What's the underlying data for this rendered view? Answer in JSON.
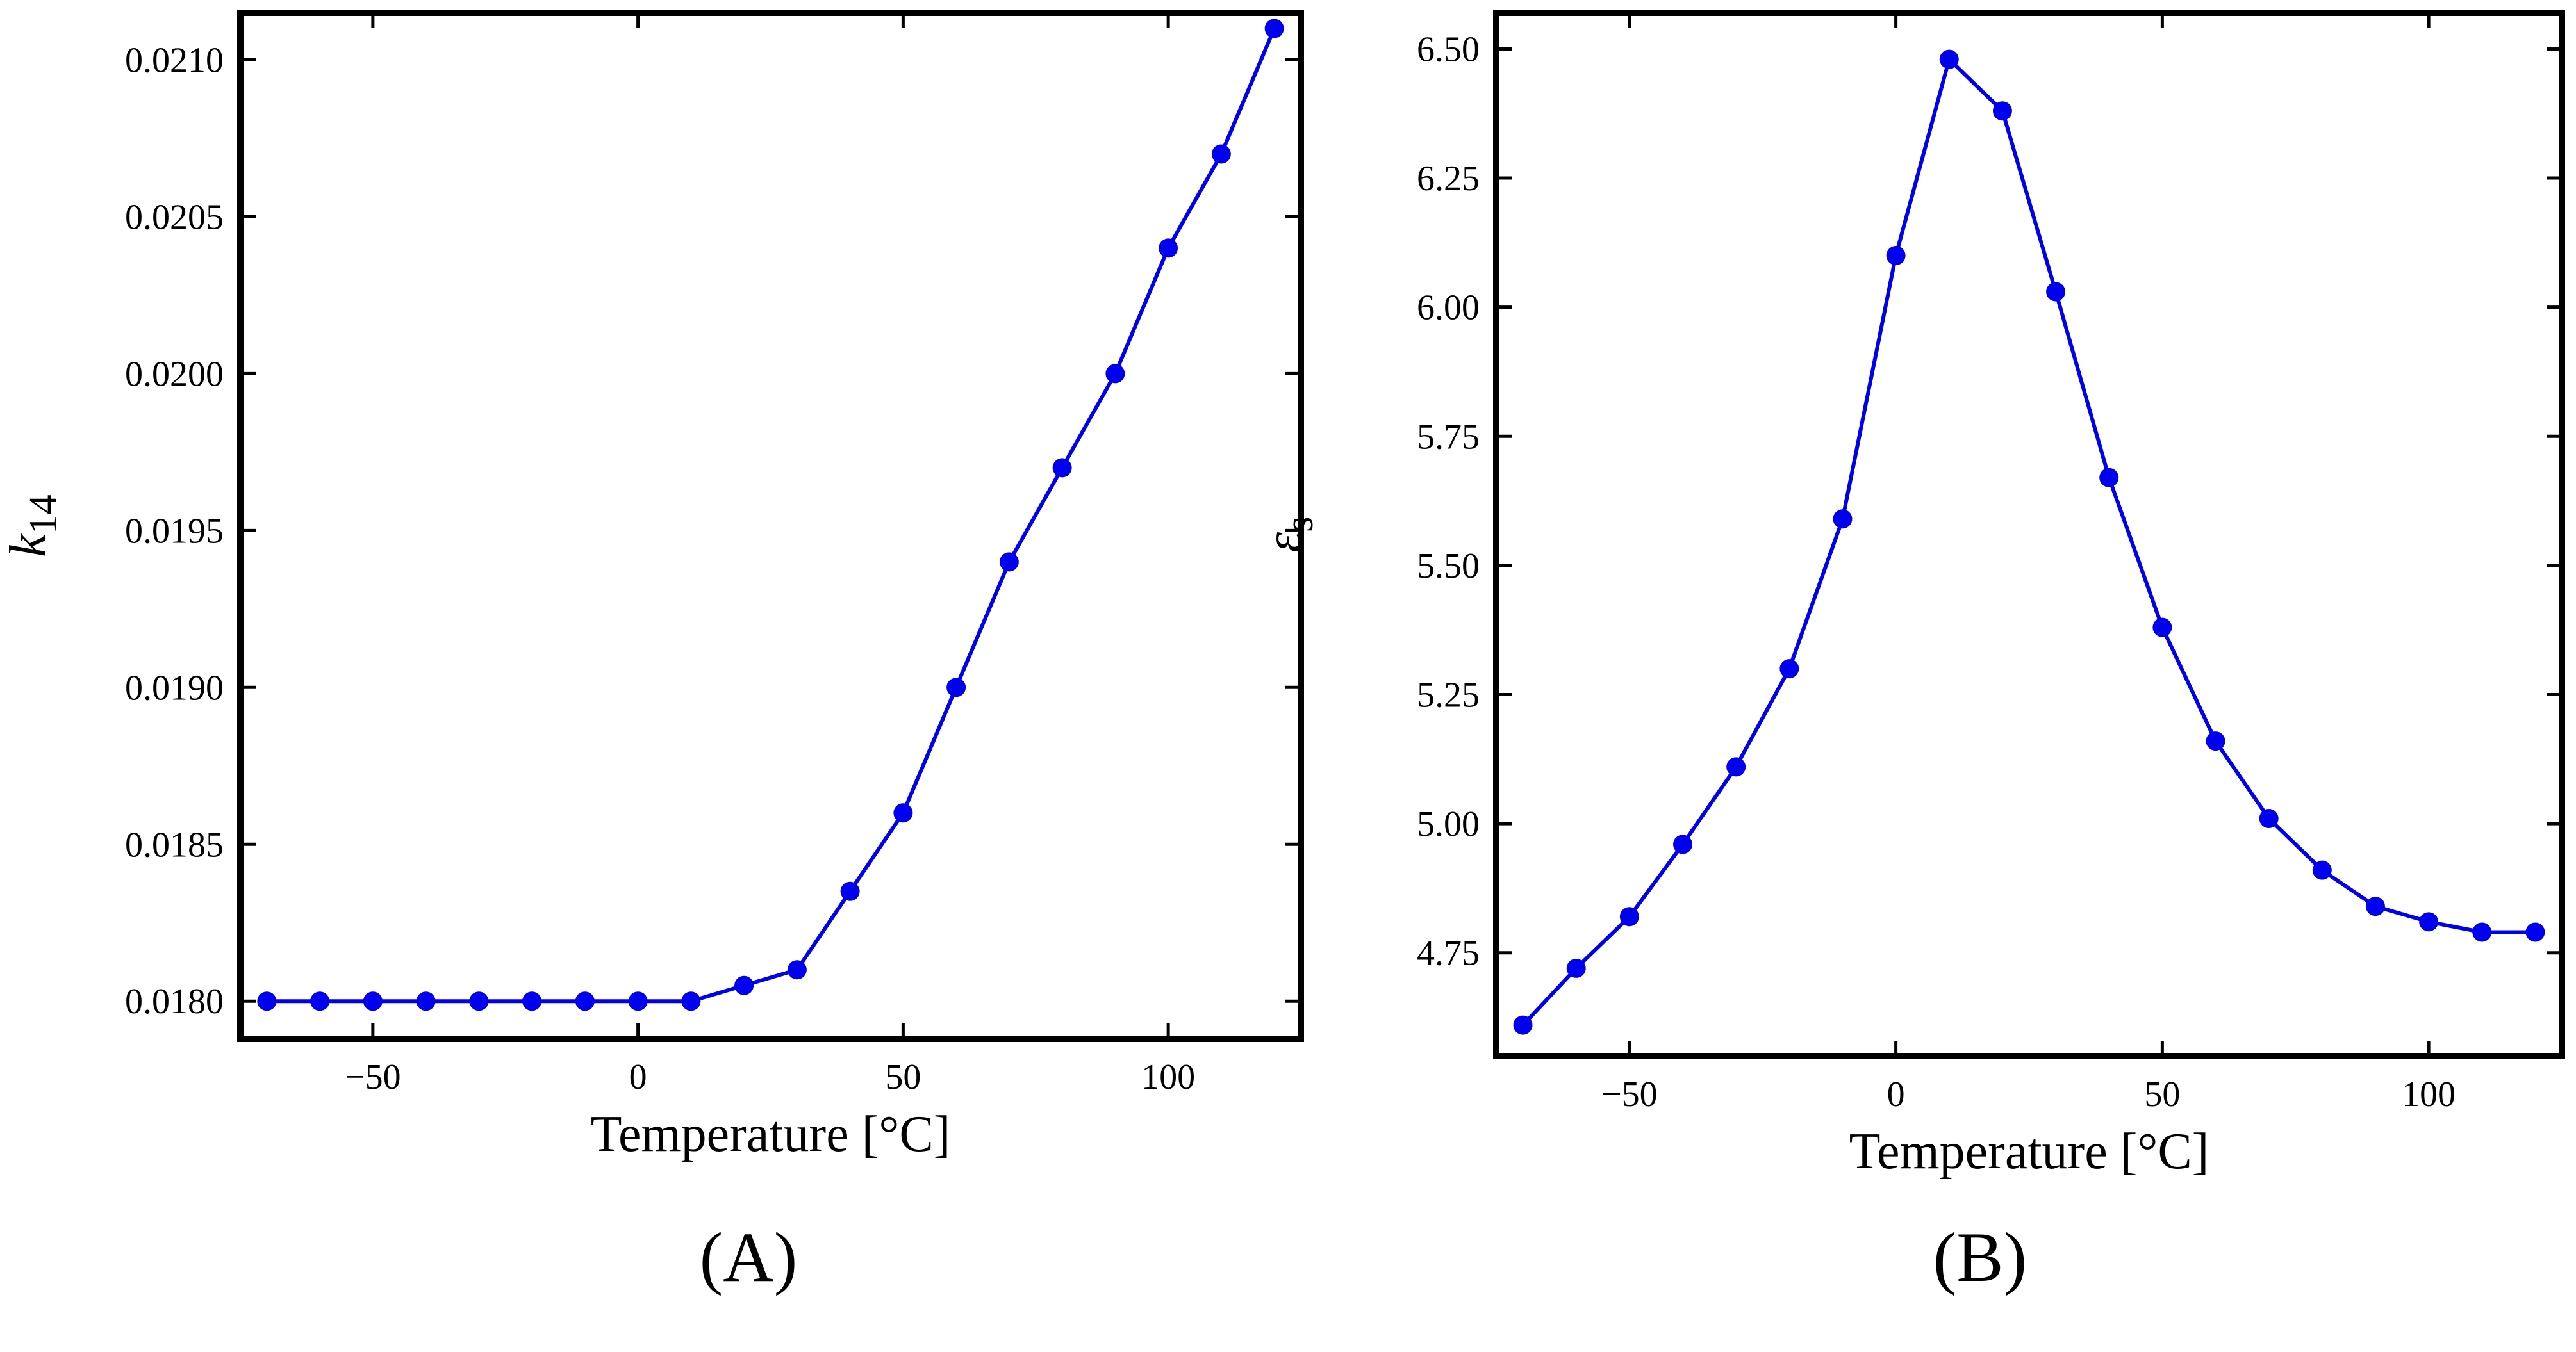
{
  "chart_data": [
    {
      "type": "line",
      "panel_label": "(A)",
      "xlabel": "Temperature [°C]",
      "ylabel": "k",
      "ylabel_sub": "14",
      "xlim": [
        -75,
        125
      ],
      "ylim": [
        0.01788,
        0.02115
      ],
      "xticks": [
        -50,
        0,
        50,
        100
      ],
      "yticks": [
        0.018,
        0.0185,
        0.019,
        0.0195,
        0.02,
        0.0205,
        0.021
      ],
      "ytick_labels": [
        "0.0180",
        "0.0185",
        "0.0190",
        "0.0195",
        "0.0200",
        "0.0205",
        "0.0210"
      ],
      "color": "#0000ee",
      "x": [
        -70,
        -60,
        -50,
        -40,
        -30,
        -20,
        -10,
        0,
        10,
        20,
        30,
        40,
        50,
        60,
        70,
        80,
        90,
        100,
        110,
        120
      ],
      "y": [
        0.018,
        0.018,
        0.018,
        0.018,
        0.018,
        0.018,
        0.018,
        0.018,
        0.018,
        0.01805,
        0.0181,
        0.01835,
        0.0186,
        0.019,
        0.0194,
        0.0197,
        0.02,
        0.0204,
        0.0207,
        0.0211
      ]
    },
    {
      "type": "line",
      "panel_label": "(B)",
      "xlabel": "Temperature [°C]",
      "ylabel": "ε",
      "ylabel_sub": "s",
      "xlim": [
        -75,
        125
      ],
      "ylim": [
        4.55,
        6.57
      ],
      "xticks": [
        -50,
        0,
        50,
        100
      ],
      "yticks": [
        4.75,
        5.0,
        5.25,
        5.5,
        5.75,
        6.0,
        6.25,
        6.5
      ],
      "ytick_labels": [
        "4.75",
        "5.00",
        "5.25",
        "5.50",
        "5.75",
        "6.00",
        "6.25",
        "6.50"
      ],
      "color": "#0000ee",
      "x": [
        -70,
        -60,
        -50,
        -40,
        -30,
        -20,
        -10,
        0,
        10,
        20,
        30,
        40,
        50,
        60,
        70,
        80,
        90,
        100,
        110,
        120
      ],
      "y": [
        4.61,
        4.72,
        4.82,
        4.96,
        5.11,
        5.3,
        5.59,
        6.1,
        6.48,
        6.38,
        6.03,
        5.67,
        5.38,
        5.16,
        5.01,
        4.91,
        4.84,
        4.81,
        4.79,
        4.79
      ]
    }
  ]
}
